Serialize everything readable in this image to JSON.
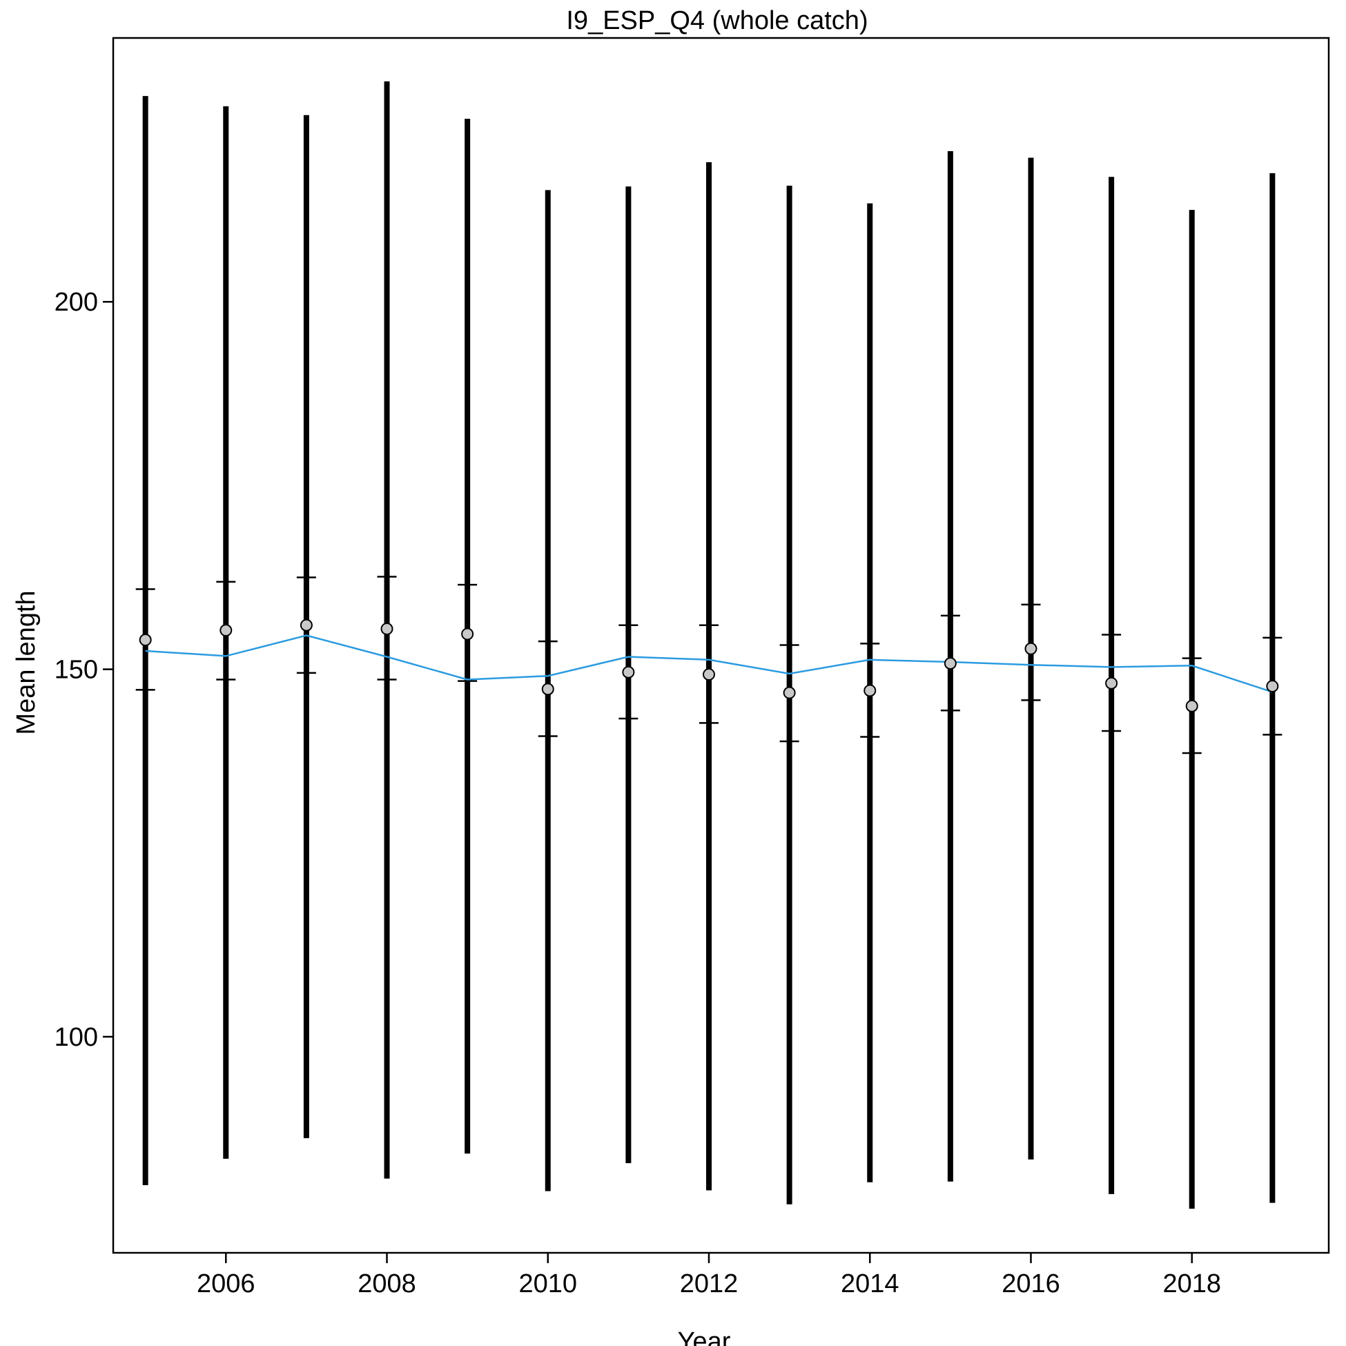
{
  "chart_data": {
    "type": "line",
    "title": "I9_ESP_Q4 (whole catch)",
    "xlabel": "Year",
    "ylabel": "Mean length",
    "x": [
      2005,
      2006,
      2007,
      2008,
      2009,
      2010,
      2011,
      2012,
      2013,
      2014,
      2015,
      2016,
      2017,
      2018,
      2019
    ],
    "xlim": [
      2004.6,
      2019.7
    ],
    "ylim": [
      70.6,
      235.9
    ],
    "xticks": [
      2006,
      2008,
      2010,
      2012,
      2014,
      2016,
      2018
    ],
    "yticks": [
      100,
      150,
      200
    ],
    "grid": false,
    "series": [
      {
        "role": "expected",
        "color": "#2b9be0",
        "values": [
          152.5,
          151.8,
          154.6,
          151.7,
          148.6,
          149.1,
          151.7,
          151.3,
          149.4,
          151.3,
          151.0,
          150.6,
          150.3,
          150.5,
          146.9
        ]
      },
      {
        "role": "observed",
        "color": "#c8c8c8",
        "values": [
          154.0,
          155.3,
          156.0,
          155.5,
          154.8,
          147.3,
          149.6,
          149.3,
          146.8,
          147.1,
          150.8,
          152.8,
          148.1,
          145.0,
          147.7
        ]
      },
      {
        "role": "inner_interval_low",
        "values": [
          147.2,
          148.6,
          149.5,
          148.6,
          148.4,
          140.9,
          143.3,
          142.7,
          140.2,
          140.8,
          144.4,
          145.8,
          141.6,
          138.6,
          141.1
        ]
      },
      {
        "role": "inner_interval_high",
        "values": [
          160.9,
          161.9,
          162.5,
          162.6,
          161.5,
          153.8,
          156.0,
          156.0,
          153.3,
          153.5,
          157.3,
          158.8,
          154.7,
          151.5,
          154.3
        ]
      },
      {
        "role": "outer_interval_low",
        "values": [
          79.8,
          83.4,
          86.2,
          80.7,
          84.1,
          79.0,
          82.8,
          79.1,
          77.2,
          80.2,
          80.3,
          83.3,
          78.6,
          76.6,
          77.4
        ]
      },
      {
        "role": "outer_interval_high",
        "values": [
          228.0,
          226.6,
          225.4,
          230.0,
          224.9,
          215.2,
          215.7,
          219.0,
          215.8,
          213.4,
          220.5,
          219.6,
          217.0,
          212.5,
          217.5
        ]
      }
    ]
  }
}
